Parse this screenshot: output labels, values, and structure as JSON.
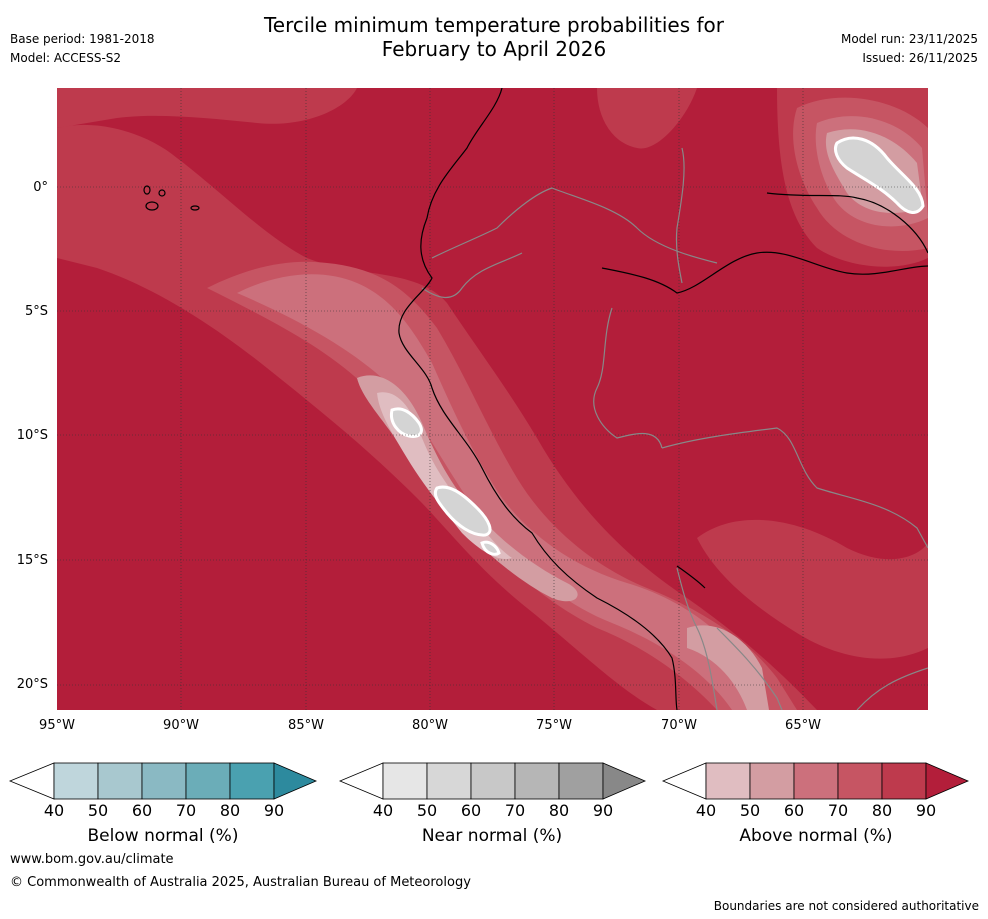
{
  "header": {
    "title_line1": "Tercile minimum temperature probabilities for",
    "title_line2": "February to April 2026",
    "base_period": "Base period: 1981-2018",
    "model": "Model: ACCESS-S2",
    "model_run": "Model run: 23/11/2025",
    "issued": "Issued: 26/11/2025"
  },
  "map": {
    "lat_labels": [
      "0°",
      "5°S",
      "10°S",
      "15°S",
      "20°S"
    ],
    "lon_labels": [
      "95°W",
      "90°W",
      "85°W",
      "80°W",
      "75°W",
      "70°W",
      "65°W"
    ],
    "colors": {
      "above_90": "#b31e3a",
      "above_80": "#be3a4d",
      "above_70": "#c65563",
      "above_60": "#cc707c",
      "above_50": "#d39da2",
      "above_40": "#e0bdc1",
      "near_40": "#d4d4d4",
      "coast": "#000000",
      "border": "#888888"
    }
  },
  "legends": [
    {
      "label": "Below normal (%)",
      "ticks": [
        "40",
        "50",
        "60",
        "70",
        "80",
        "90"
      ],
      "colors": [
        "#bfd6dc",
        "#a8c8cf",
        "#8ab9c3",
        "#6badb8",
        "#4aa1b0",
        "#2d8a9e"
      ]
    },
    {
      "label": "Near normal (%)",
      "ticks": [
        "40",
        "50",
        "60",
        "70",
        "80",
        "90"
      ],
      "colors": [
        "#e6e6e6",
        "#d7d7d7",
        "#c8c8c8",
        "#b6b6b6",
        "#a0a0a0",
        "#888888"
      ]
    },
    {
      "label": "Above normal (%)",
      "ticks": [
        "40",
        "50",
        "60",
        "70",
        "80",
        "90"
      ],
      "colors": [
        "#e0bdc1",
        "#d39da2",
        "#cc707c",
        "#c65563",
        "#be3a4d",
        "#b31e3a"
      ]
    }
  ],
  "footer": {
    "site": "www.bom.gov.au/climate",
    "copyright": "© Commonwealth of Australia 2025, Australian Bureau of Meteorology",
    "disclaimer": "Boundaries are not considered authoritative"
  }
}
